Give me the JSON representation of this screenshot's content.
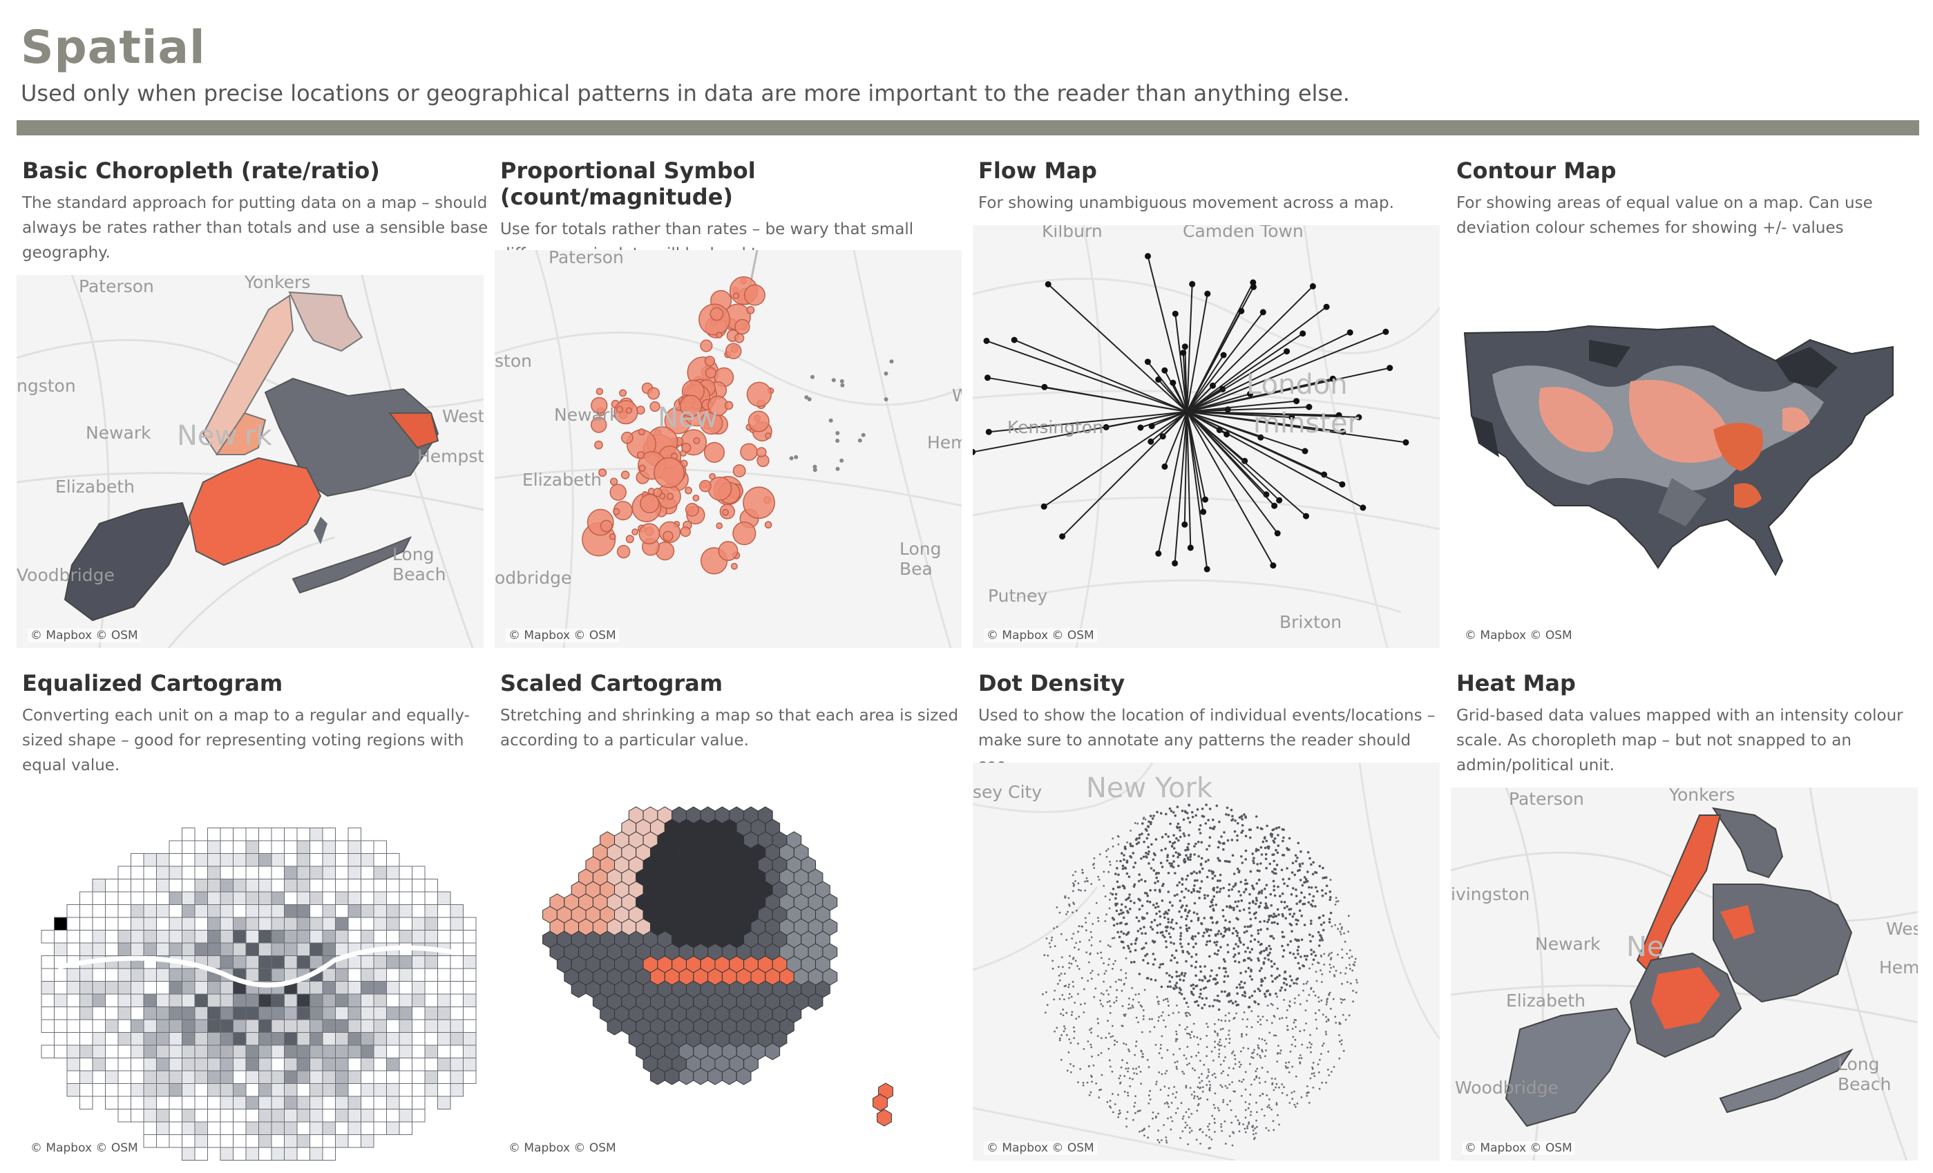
{
  "header": {
    "title": "Spatial",
    "subtitle": "Used only when precise locations or geographical patterns in data are more important to the reader than anything else."
  },
  "colors": {
    "accent": "#ef6f4f",
    "dark": "#5d6068",
    "rule": "#8a8c80"
  },
  "cards": [
    {
      "title": "Basic Choropleth (rate/ratio)",
      "desc": "The standard approach for putting data on a map – should always be rates rather than totals and use a sensible base geography.",
      "credit": "© Mapbox © OSM",
      "places": [
        "Yonkers",
        "Paterson",
        "ngston",
        "Newark",
        "New",
        "rk",
        "Westb",
        "Hempstea",
        "Elizabeth",
        "Long Beach",
        "Voodbridge"
      ]
    },
    {
      "title": "Proportional Symbol (count/magnitude)",
      "desc": "Use for totals rather than rates – be wary that small differences in data will be hard to see.",
      "credit": "© Mapbox © OSM",
      "places": [
        "Paterson",
        "ston",
        "Newark",
        "New",
        "Hemp",
        "Elizabeth",
        "Long Bea",
        "odbridge",
        "W"
      ]
    },
    {
      "title": "Flow Map",
      "desc": "For showing unambiguous movement across a map.",
      "credit": "© Mapbox © OSM",
      "places": [
        "Kilburn",
        "Camden Town",
        "Kensington",
        "London",
        "minster",
        "Putney",
        "Brixton"
      ]
    },
    {
      "title": "Contour Map",
      "desc": "For showing areas of equal value on a map. Can use deviation colour schemes for showing +/- values",
      "credit": "© Mapbox © OSM",
      "places": []
    },
    {
      "title": "Equalized Cartogram",
      "desc": "Converting each unit on a map to a regular and equally-sized shape – good for representing voting regions with equal value.",
      "credit": "© Mapbox © OSM",
      "places": []
    },
    {
      "title": "Scaled Cartogram",
      "desc": "Stretching and shrinking a map so that each area is sized according to a particular value.",
      "credit": "© Mapbox © OSM",
      "places": []
    },
    {
      "title": "Dot Density",
      "desc": "Used to show the location of individual events/locations – make sure to annotate any patterns the reader should see.",
      "credit": "© Mapbox © OSM",
      "places": [
        "sey City",
        "New York"
      ]
    },
    {
      "title": "Heat Map",
      "desc": "Grid-based data values mapped with an intensity colour scale. As choropleth map – but not snapped to an admin/political unit.",
      "credit": "© Mapbox © OSM",
      "places": [
        "Yonkers",
        "Paterson",
        "ivingston",
        "Newark",
        "Ne",
        "Wes",
        "Hempst",
        "Elizabeth",
        "Long Beach",
        "Woodbridge"
      ]
    }
  ]
}
